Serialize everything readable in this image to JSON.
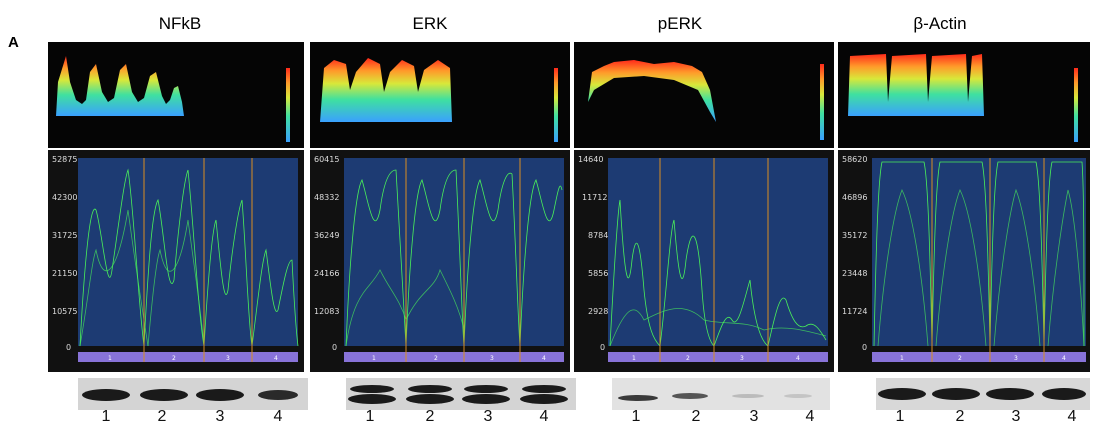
{
  "panel_label": "A",
  "columns": [
    {
      "title": "NFkB",
      "y_ticks": [
        "52875",
        "42300",
        "31725",
        "21150",
        "10575",
        "0"
      ],
      "lane_labels": [
        "1",
        "2",
        "3",
        "4"
      ],
      "lane_numbers": [
        "1",
        "2",
        "3",
        "4"
      ]
    },
    {
      "title": "ERK",
      "y_ticks": [
        "60415",
        "48332",
        "36249",
        "24166",
        "12083",
        "0"
      ],
      "lane_labels": [
        "1",
        "2",
        "3",
        "4"
      ],
      "lane_numbers": [
        "1",
        "2",
        "3",
        "4"
      ]
    },
    {
      "title": "pERK",
      "y_ticks": [
        "14640",
        "11712",
        "8784",
        "5856",
        "2928",
        "0"
      ],
      "lane_labels": [
        "1",
        "2",
        "3",
        "4"
      ],
      "lane_numbers": [
        "1",
        "2",
        "3",
        "4"
      ]
    },
    {
      "title": "β-Actin",
      "y_ticks": [
        "58620",
        "46896",
        "35172",
        "23448",
        "11724",
        "0"
      ],
      "lane_labels": [
        "1",
        "2",
        "3",
        "4"
      ],
      "lane_numbers": [
        "1",
        "2",
        "3",
        "4"
      ]
    }
  ]
}
